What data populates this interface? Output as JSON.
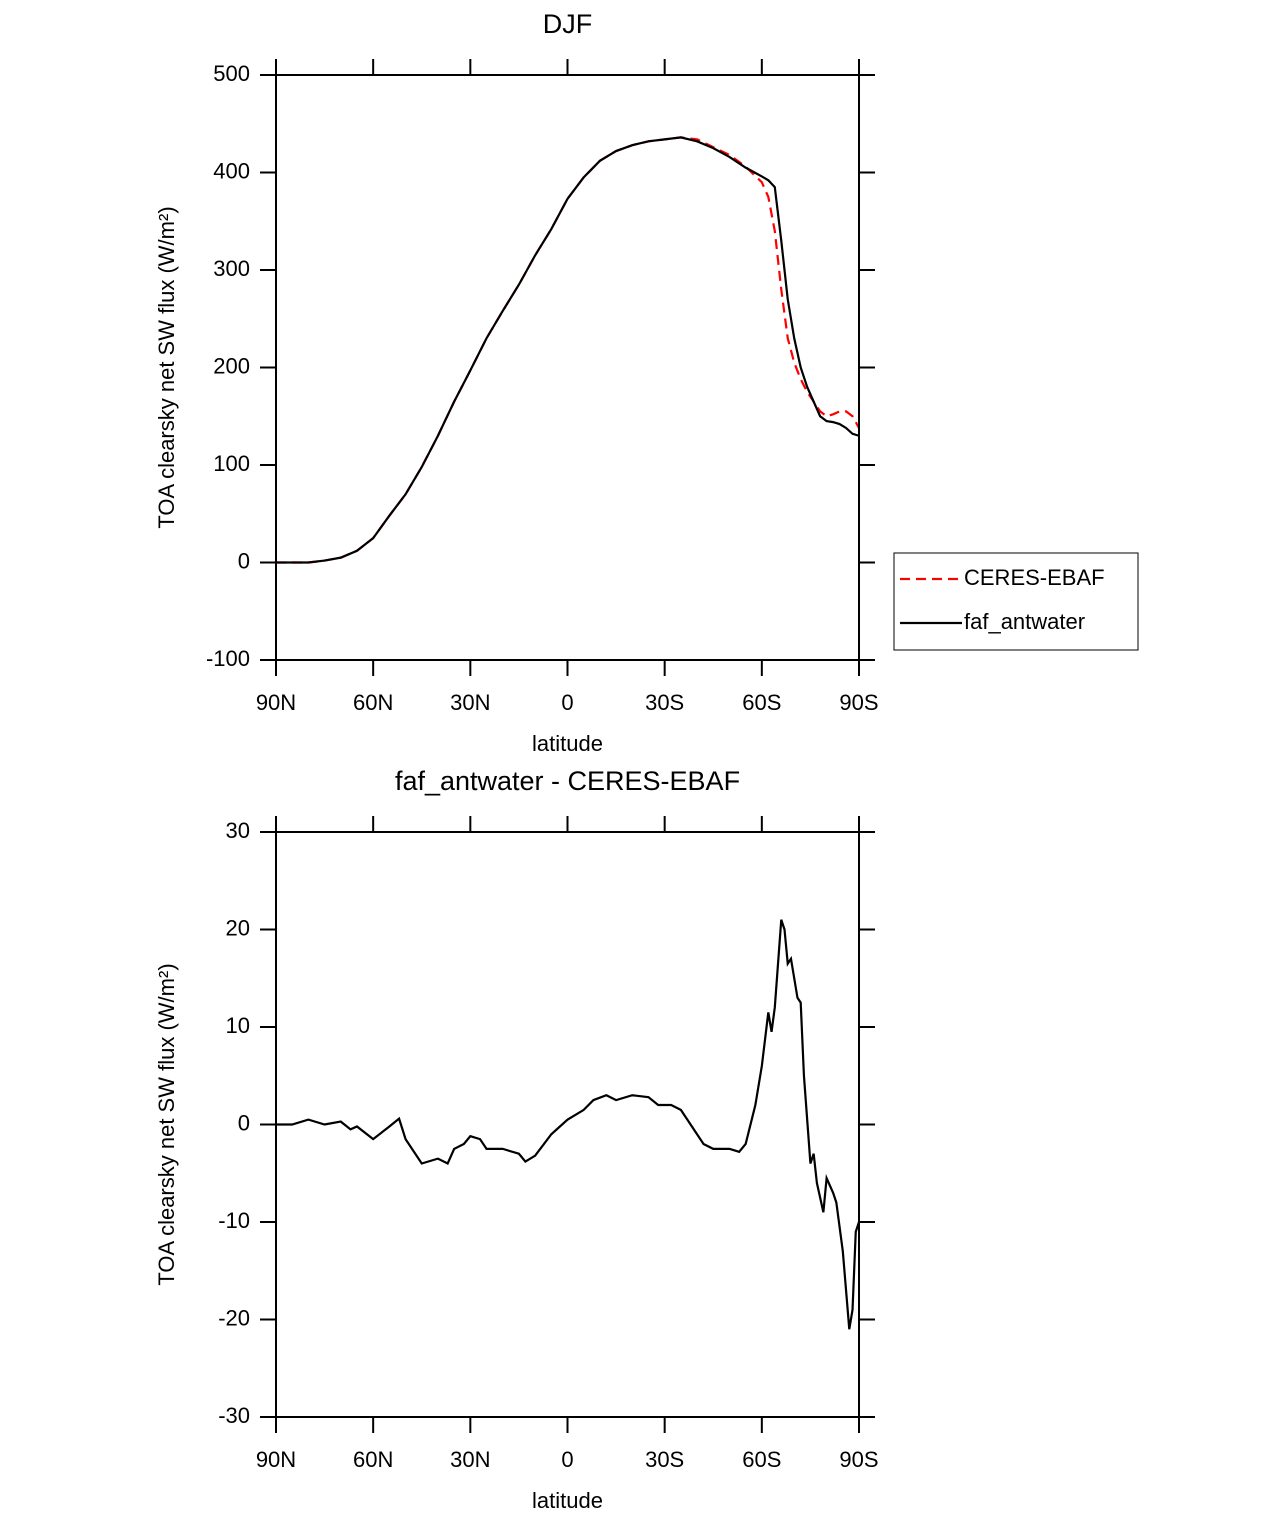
{
  "chart_data": [
    {
      "type": "line",
      "title": "DJF",
      "x_label": "latitude",
      "y_label": "TOA clearsky net SW flux (W/m²)",
      "xlim": [
        90,
        -90
      ],
      "xticks": [
        {
          "value": 90,
          "label": "90N"
        },
        {
          "value": 60,
          "label": "60N"
        },
        {
          "value": 30,
          "label": "30N"
        },
        0,
        {
          "value": -30,
          "label": "30S"
        },
        {
          "value": -60,
          "label": "60S"
        },
        {
          "value": -90,
          "label": "90S"
        }
      ],
      "ylim": [
        -100,
        500
      ],
      "yticks": [
        -100,
        0,
        100,
        200,
        300,
        400,
        500
      ],
      "legend": "right",
      "x": [
        90,
        85,
        80,
        75,
        70,
        65,
        60,
        55,
        50,
        45,
        40,
        35,
        30,
        25,
        20,
        15,
        10,
        5,
        0,
        -5,
        -10,
        -15,
        -20,
        -25,
        -30,
        -35,
        -40,
        -45,
        -50,
        -55,
        -60,
        -62,
        -64,
        -66,
        -68,
        -70,
        -72,
        -74,
        -76,
        -78,
        -80,
        -82,
        -84,
        -86,
        -88,
        -90
      ],
      "series": [
        {
          "name": "CERES-EBAF",
          "color": "#ff0000",
          "style": "dashed",
          "values": [
            0,
            0,
            0,
            2,
            5,
            12,
            25,
            48,
            70,
            98,
            130,
            165,
            197,
            230,
            258,
            285,
            315,
            342,
            373,
            395,
            412,
            422,
            428,
            432,
            434,
            436,
            434,
            426,
            418,
            406,
            390,
            375,
            340,
            280,
            230,
            205,
            188,
            175,
            165,
            155,
            150,
            152,
            155,
            155,
            150,
            138
          ]
        },
        {
          "name": "faf_antwater",
          "color": "#000000",
          "style": "solid",
          "values": [
            0,
            0,
            0,
            2,
            5,
            12,
            25,
            48,
            70,
            98,
            130,
            165,
            197,
            230,
            258,
            285,
            315,
            342,
            373,
            395,
            412,
            422,
            428,
            432,
            434,
            436,
            432,
            425,
            416,
            405,
            396,
            392,
            385,
            330,
            270,
            230,
            200,
            180,
            165,
            150,
            145,
            144,
            142,
            138,
            132,
            130
          ]
        }
      ]
    },
    {
      "type": "line",
      "title": "faf_antwater - CERES-EBAF",
      "x_label": "latitude",
      "y_label": "TOA clearsky net SW flux (W/m²)",
      "xlim": [
        90,
        -90
      ],
      "xticks": [
        {
          "value": 90,
          "label": "90N"
        },
        {
          "value": 60,
          "label": "60N"
        },
        {
          "value": 30,
          "label": "30N"
        },
        0,
        {
          "value": -30,
          "label": "30S"
        },
        {
          "value": -60,
          "label": "60S"
        },
        {
          "value": -90,
          "label": "90S"
        }
      ],
      "ylim": [
        -30,
        30
      ],
      "yticks": [
        -30,
        -20,
        -10,
        0,
        10,
        20,
        30
      ],
      "color": "#000000",
      "x": [
        90,
        85,
        80,
        75,
        70,
        67,
        65,
        60,
        55,
        52,
        50,
        47,
        45,
        40,
        37,
        35,
        32,
        30,
        27,
        25,
        20,
        15,
        13,
        10,
        5,
        0,
        -5,
        -8,
        -12,
        -15,
        -20,
        -25,
        -28,
        -32,
        -35,
        -38,
        -42,
        -45,
        -50,
        -53,
        -55,
        -58,
        -60,
        -62,
        -63,
        -64,
        -66,
        -67,
        -68,
        -69,
        -71,
        -72,
        -73,
        -75,
        -76,
        -77,
        -79,
        -80,
        -82,
        -83,
        -85,
        -87,
        -88,
        -89,
        -90
      ],
      "values": [
        0,
        0,
        0.5,
        0,
        0.3,
        -0.5,
        -0.2,
        -1.5,
        -0.2,
        0.6,
        -1.5,
        -3,
        -4,
        -3.5,
        -4,
        -2.5,
        -2,
        -1.2,
        -1.5,
        -2.5,
        -2.5,
        -3,
        -3.8,
        -3.2,
        -1,
        0.5,
        1.5,
        2.5,
        3,
        2.5,
        3,
        2.8,
        2,
        2,
        1.5,
        0,
        -2,
        -2.5,
        -2.5,
        -2.8,
        -2,
        2,
        6,
        11.5,
        9.5,
        12,
        21,
        20,
        16.5,
        17,
        13,
        12.5,
        5,
        -4,
        -3,
        -6,
        -9,
        -5.5,
        -7,
        -8,
        -13,
        -21,
        -19,
        -11,
        -10
      ]
    }
  ]
}
